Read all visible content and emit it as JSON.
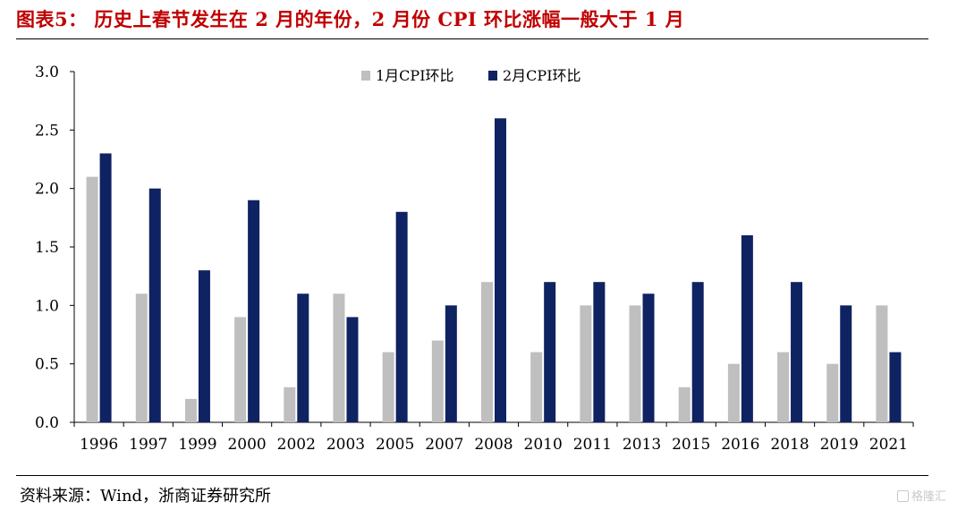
{
  "header": {
    "title": "图表5： 历史上春节发生在 2 月的年份，2 月份 CPI 环比涨幅一般大于 1 月"
  },
  "footer": {
    "source": "资料来源：Wind，浙商证券研究所",
    "watermark": "格隆汇"
  },
  "colors": {
    "title": "#c00000",
    "series1": "#bfbfbf",
    "series2": "#0f2261"
  },
  "chart_data": {
    "type": "bar",
    "categories": [
      "1996",
      "1997",
      "1999",
      "2000",
      "2002",
      "2003",
      "2005",
      "2007",
      "2008",
      "2010",
      "2011",
      "2013",
      "2015",
      "2016",
      "2018",
      "2019",
      "2021"
    ],
    "series": [
      {
        "name": "1月CPI环比",
        "color": "#bfbfbf",
        "values": [
          2.1,
          1.1,
          0.2,
          0.9,
          0.3,
          1.1,
          0.6,
          0.7,
          1.2,
          0.6,
          1.0,
          1.0,
          0.3,
          0.5,
          0.6,
          0.5,
          1.0
        ]
      },
      {
        "name": "2月CPI环比",
        "color": "#0f2261",
        "values": [
          2.3,
          2.0,
          1.3,
          1.9,
          1.1,
          0.9,
          1.8,
          1.0,
          2.6,
          1.2,
          1.2,
          1.1,
          1.2,
          1.6,
          1.2,
          1.0,
          0.6
        ]
      }
    ],
    "yticks": [
      "0.0",
      "0.5",
      "1.0",
      "1.5",
      "2.0",
      "2.5",
      "3.0"
    ],
    "ylim": [
      0,
      3.0
    ],
    "legend_position": "top-center",
    "grid": false
  }
}
